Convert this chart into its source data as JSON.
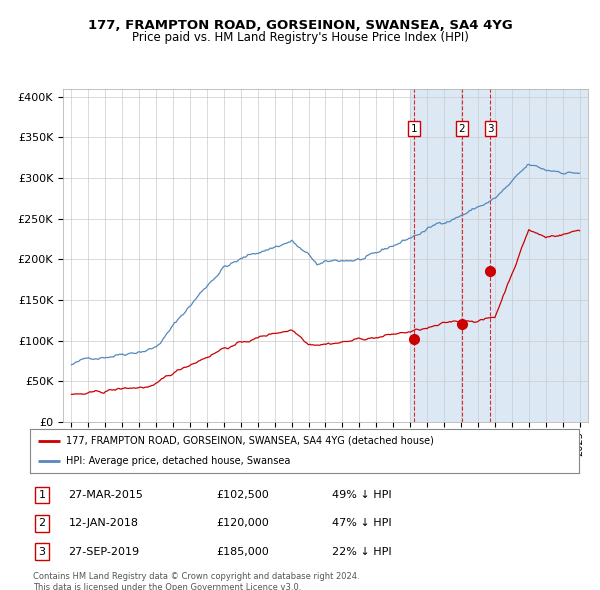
{
  "title1": "177, FRAMPTON ROAD, GORSEINON, SWANSEA, SA4 4YG",
  "title2": "Price paid vs. HM Land Registry's House Price Index (HPI)",
  "xlim": [
    1994.5,
    2025.5
  ],
  "ylim": [
    0,
    410000
  ],
  "yticks": [
    0,
    50000,
    100000,
    150000,
    200000,
    250000,
    300000,
    350000,
    400000
  ],
  "ytick_labels": [
    "£0",
    "£50K",
    "£100K",
    "£150K",
    "£200K",
    "£250K",
    "£300K",
    "£350K",
    "£400K"
  ],
  "xticks": [
    1995,
    1996,
    1997,
    1998,
    1999,
    2000,
    2001,
    2002,
    2003,
    2004,
    2005,
    2006,
    2007,
    2008,
    2009,
    2010,
    2011,
    2012,
    2013,
    2014,
    2015,
    2016,
    2017,
    2018,
    2019,
    2020,
    2021,
    2022,
    2023,
    2024,
    2025
  ],
  "sale_dates": [
    2015.23,
    2018.04,
    2019.74
  ],
  "sale_prices": [
    102500,
    120000,
    185000
  ],
  "sale_labels": [
    "1",
    "2",
    "3"
  ],
  "highlight_start": 2015.0,
  "highlight_end": 2025.5,
  "highlight_color": "#dce9f5",
  "red_color": "#cc0000",
  "blue_color": "#5588bb",
  "legend_label_red": "177, FRAMPTON ROAD, GORSEINON, SWANSEA, SA4 4YG (detached house)",
  "legend_label_blue": "HPI: Average price, detached house, Swansea",
  "table_data": [
    [
      "1",
      "27-MAR-2015",
      "£102,500",
      "49% ↓ HPI"
    ],
    [
      "2",
      "12-JAN-2018",
      "£120,000",
      "47% ↓ HPI"
    ],
    [
      "3",
      "27-SEP-2019",
      "£185,000",
      "22% ↓ HPI"
    ]
  ],
  "footer": "Contains HM Land Registry data © Crown copyright and database right 2024.\nThis data is licensed under the Open Government Licence v3.0.",
  "bg_color": "#ffffff",
  "grid_color": "#cccccc"
}
